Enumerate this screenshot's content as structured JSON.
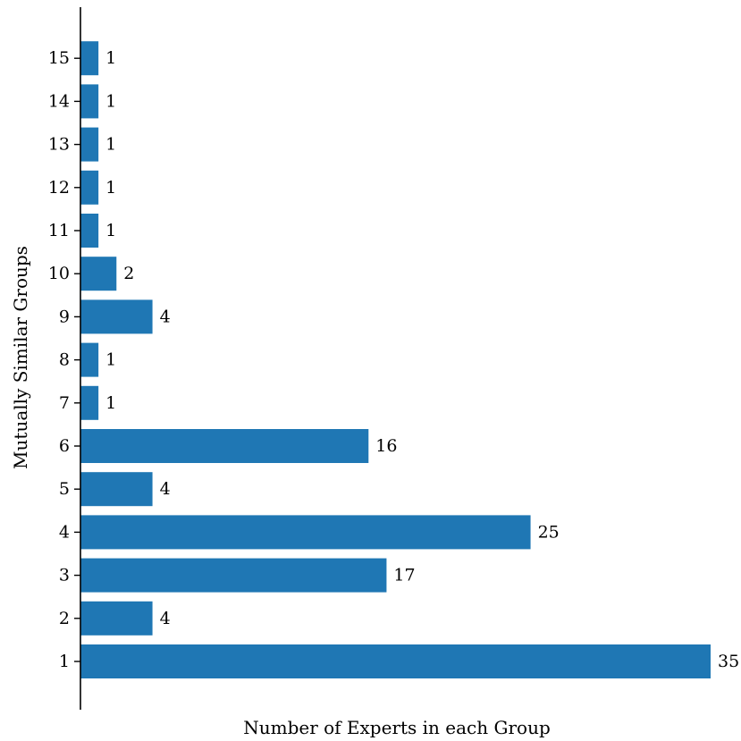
{
  "chart_data": {
    "type": "bar",
    "orientation": "horizontal",
    "categories": [
      "1",
      "2",
      "3",
      "4",
      "5",
      "6",
      "7",
      "8",
      "9",
      "10",
      "11",
      "12",
      "13",
      "14",
      "15"
    ],
    "values": [
      35,
      4,
      17,
      25,
      4,
      16,
      1,
      1,
      4,
      2,
      1,
      1,
      1,
      1,
      1
    ],
    "data_labels": [
      "35",
      "4",
      "17",
      "25",
      "4",
      "16",
      "1",
      "1",
      "4",
      "2",
      "1",
      "1",
      "1",
      "1",
      "1"
    ],
    "xlabel": "Number of Experts in each Group",
    "ylabel": "Mutually Similar Groups",
    "xlim": [
      0,
      35
    ],
    "x_axis_visible": false,
    "grid": false,
    "legend": "none",
    "colors": {
      "bar": "#1f77b4",
      "axis": "#000000",
      "text": "#000000"
    }
  }
}
